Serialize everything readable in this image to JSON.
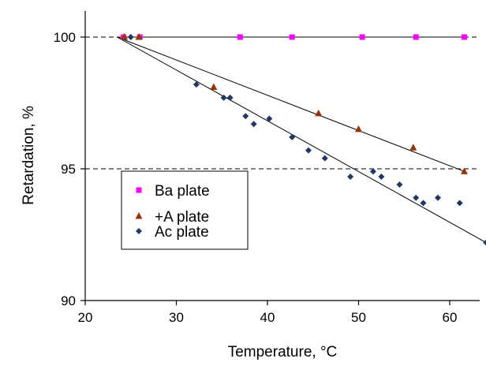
{
  "chart_data": {
    "type": "scatter",
    "title": "",
    "xlabel": "Temperature, °C",
    "ylabel": "Retardation, %",
    "xlim": [
      20,
      64
    ],
    "ylim": [
      90,
      101
    ],
    "xticks": [
      20,
      30,
      40,
      50,
      60
    ],
    "yticks": [
      90,
      95,
      100
    ],
    "xtick_labels": [
      "20",
      "30",
      "40",
      "50",
      "60"
    ],
    "ytick_labels": [
      "90",
      "95",
      "100"
    ],
    "grid": "dashed horizontal at 95 and 100",
    "legend_position": "lower-left",
    "series": [
      {
        "name": "Ba plate",
        "marker": "square",
        "color": "#ff00ff",
        "x": [
          24.2,
          26.0,
          37.0,
          42.7,
          50.4,
          56.3,
          61.6
        ],
        "y": [
          100.0,
          100.0,
          100.0,
          100.0,
          100.0,
          100.0,
          100.0
        ],
        "trendline": {
          "x": [
            23.5,
            61.6
          ],
          "y": [
            100.0,
            100.0
          ]
        }
      },
      {
        "name": "+A plate",
        "marker": "triangle",
        "color": "#993300",
        "x": [
          24.3,
          25.9,
          34.1,
          45.6,
          50.0,
          56.0,
          61.6
        ],
        "y": [
          100.0,
          100.0,
          98.1,
          97.1,
          96.5,
          95.8,
          94.9
        ],
        "trendline": {
          "x": [
            23.5,
            61.6
          ],
          "y": [
            100.0,
            94.9
          ]
        }
      },
      {
        "name": "Ac plate",
        "marker": "diamond",
        "color": "#1f3864",
        "x": [
          25.0,
          32.2,
          35.2,
          35.9,
          37.6,
          38.5,
          40.2,
          42.7,
          44.5,
          46.3,
          49.1,
          51.6,
          52.5,
          54.5,
          56.3,
          57.1,
          58.7,
          61.1,
          64.0
        ],
        "y": [
          100.0,
          98.2,
          97.7,
          97.7,
          97.0,
          96.7,
          96.9,
          96.2,
          95.7,
          95.4,
          94.7,
          94.9,
          94.7,
          94.4,
          93.9,
          93.7,
          93.9,
          93.7,
          92.2
        ],
        "trendline": {
          "x": [
            23.5,
            64.0
          ],
          "y": [
            100.0,
            92.2
          ]
        }
      }
    ]
  }
}
